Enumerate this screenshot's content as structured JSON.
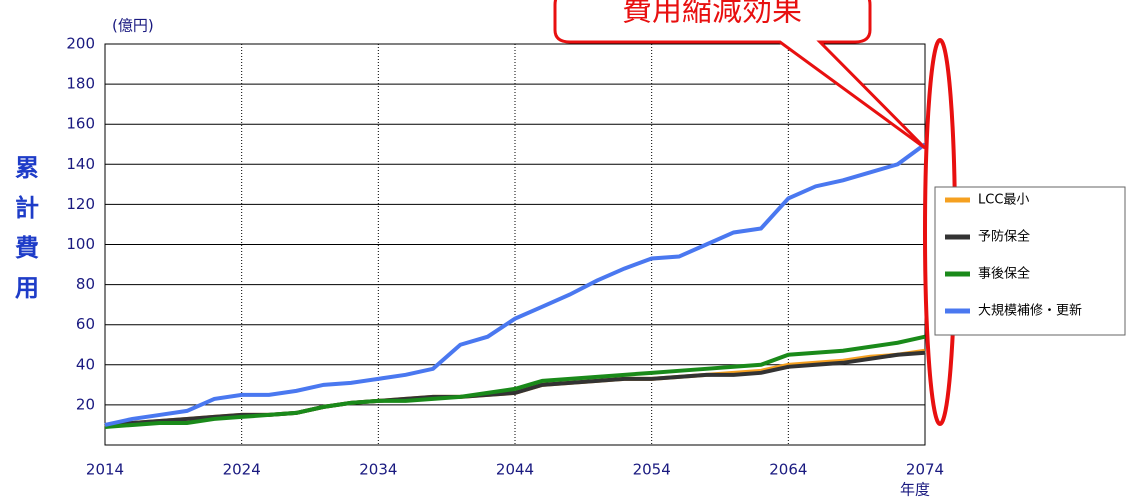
{
  "chart_data": {
    "type": "line",
    "y_unit": "(億円)",
    "y_label": "累計費用",
    "x_label": "年度",
    "annotation": "費用縮減効果",
    "x": [
      2014,
      2016,
      2018,
      2020,
      2022,
      2024,
      2026,
      2028,
      2030,
      2032,
      2034,
      2036,
      2038,
      2040,
      2042,
      2044,
      2046,
      2048,
      2050,
      2052,
      2054,
      2056,
      2058,
      2060,
      2062,
      2064,
      2066,
      2068,
      2070,
      2072,
      2074
    ],
    "series": [
      {
        "name": "LCC最小",
        "color": "#f5a020",
        "values": [
          9,
          11,
          12,
          13,
          14,
          15,
          15,
          16,
          19,
          21,
          22,
          23,
          24,
          24,
          25,
          26,
          30,
          31,
          32,
          33,
          33,
          34,
          35,
          36,
          37,
          40,
          41,
          42,
          44,
          45,
          47
        ]
      },
      {
        "name": "予防保全",
        "color": "#333333",
        "values": [
          10,
          11,
          12,
          13,
          14,
          15,
          15,
          16,
          19,
          21,
          22,
          23,
          24,
          24,
          25,
          26,
          30,
          31,
          32,
          33,
          33,
          34,
          35,
          35,
          36,
          39,
          40,
          41,
          43,
          45,
          46
        ]
      },
      {
        "name": "事後保全",
        "color": "#1a8a1a",
        "values": [
          9,
          10,
          11,
          11,
          13,
          14,
          15,
          16,
          19,
          21,
          22,
          22,
          23,
          24,
          26,
          28,
          32,
          33,
          34,
          35,
          36,
          37,
          38,
          39,
          40,
          45,
          46,
          47,
          49,
          51,
          54
        ]
      },
      {
        "name": "大規模補修・更新",
        "color": "#4a78f0",
        "values": [
          10,
          13,
          15,
          17,
          23,
          25,
          25,
          27,
          30,
          31,
          33,
          35,
          38,
          50,
          54,
          63,
          69,
          75,
          82,
          88,
          93,
          94,
          100,
          106,
          108,
          123,
          129,
          132,
          136,
          140,
          150
        ]
      }
    ],
    "xlim": [
      2014,
      2074
    ],
    "xticks": [
      2014,
      2024,
      2034,
      2044,
      2054,
      2064,
      2074
    ],
    "ylim": [
      0,
      200
    ],
    "yticks": [
      20,
      40,
      60,
      80,
      100,
      120,
      140,
      160,
      180,
      200
    ],
    "grid": true,
    "legend": "right"
  }
}
